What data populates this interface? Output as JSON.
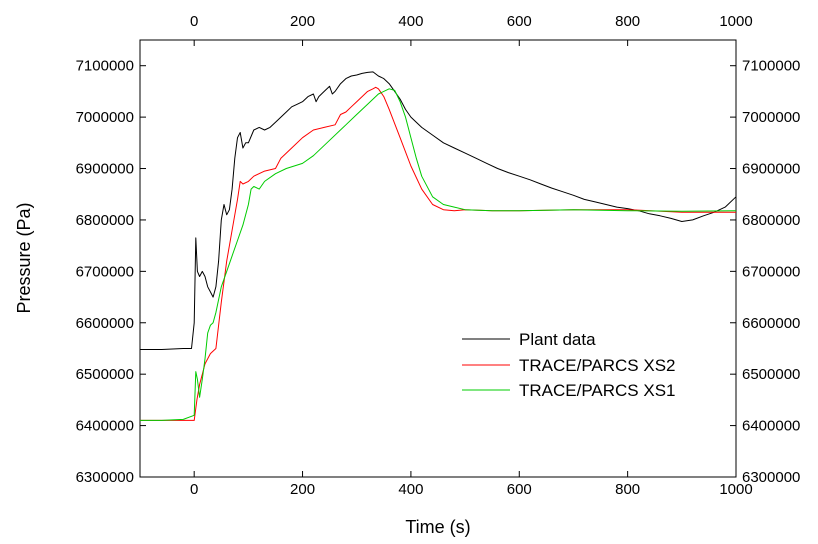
{
  "chart_data": {
    "type": "line",
    "xlabel": "Time (s)",
    "ylabel": "Pressure (Pa)",
    "xlim": [
      -100,
      1000
    ],
    "ylim": [
      6300000,
      7150000
    ],
    "xticks": [
      0,
      200,
      400,
      600,
      800,
      1000
    ],
    "yticks": [
      6300000,
      6400000,
      6500000,
      6600000,
      6700000,
      6800000,
      6900000,
      7000000,
      7100000
    ],
    "xtick_labels": [
      "0",
      "200",
      "400",
      "600",
      "800",
      "1000"
    ],
    "ytick_labels": [
      "6300000",
      "6400000",
      "6500000",
      "6600000",
      "6700000",
      "6800000",
      "6900000",
      "7000000",
      "7100000"
    ],
    "top_axis_mirrored": true,
    "right_axis_mirrored": true,
    "grid": false,
    "legend_position": "lower-right",
    "series": [
      {
        "name": "Plant data",
        "color": "#000000",
        "x": [
          -100,
          -60,
          -20,
          -5,
          0,
          3,
          6,
          10,
          15,
          20,
          25,
          30,
          35,
          40,
          45,
          50,
          55,
          60,
          65,
          70,
          75,
          80,
          85,
          90,
          95,
          100,
          110,
          120,
          130,
          140,
          150,
          160,
          170,
          180,
          190,
          200,
          210,
          220,
          225,
          230,
          240,
          250,
          255,
          260,
          270,
          280,
          290,
          300,
          310,
          320,
          330,
          340,
          350,
          360,
          370,
          380,
          390,
          400,
          420,
          440,
          460,
          480,
          500,
          520,
          540,
          560,
          580,
          600,
          620,
          640,
          660,
          680,
          700,
          720,
          740,
          760,
          780,
          800,
          820,
          840,
          860,
          880,
          900,
          920,
          940,
          960,
          980,
          1000
        ],
        "y": [
          6548000,
          6548000,
          6550000,
          6550000,
          6600000,
          6765000,
          6700000,
          6690000,
          6700000,
          6690000,
          6670000,
          6660000,
          6650000,
          6670000,
          6720000,
          6800000,
          6830000,
          6810000,
          6820000,
          6860000,
          6920000,
          6960000,
          6970000,
          6940000,
          6950000,
          6950000,
          6975000,
          6980000,
          6975000,
          6980000,
          6990000,
          7000000,
          7010000,
          7020000,
          7025000,
          7030000,
          7040000,
          7045000,
          7030000,
          7040000,
          7050000,
          7060000,
          7045000,
          7050000,
          7065000,
          7075000,
          7080000,
          7082000,
          7085000,
          7087000,
          7088000,
          7080000,
          7075000,
          7065000,
          7050000,
          7035000,
          7015000,
          7000000,
          6980000,
          6965000,
          6950000,
          6940000,
          6930000,
          6920000,
          6910000,
          6900000,
          6892000,
          6885000,
          6878000,
          6870000,
          6862000,
          6855000,
          6848000,
          6840000,
          6835000,
          6830000,
          6825000,
          6822000,
          6818000,
          6812000,
          6808000,
          6803000,
          6797000,
          6800000,
          6808000,
          6815000,
          6825000,
          6845000
        ]
      },
      {
        "name": "TRACE/PARCS XS2",
        "color": "#ff0000",
        "x": [
          -100,
          -60,
          -20,
          0,
          5,
          10,
          15,
          20,
          30,
          40,
          50,
          60,
          70,
          80,
          85,
          90,
          100,
          110,
          130,
          150,
          160,
          170,
          180,
          200,
          220,
          240,
          260,
          270,
          280,
          290,
          300,
          310,
          320,
          330,
          335,
          340,
          350,
          360,
          380,
          400,
          420,
          440,
          460,
          480,
          500,
          550,
          600,
          700,
          800,
          900,
          1000
        ],
        "y": [
          6410000,
          6410000,
          6410000,
          6410000,
          6450000,
          6480000,
          6500000,
          6520000,
          6540000,
          6550000,
          6640000,
          6720000,
          6780000,
          6840000,
          6875000,
          6870000,
          6875000,
          6885000,
          6895000,
          6900000,
          6920000,
          6930000,
          6940000,
          6960000,
          6975000,
          6980000,
          6985000,
          7005000,
          7010000,
          7020000,
          7030000,
          7040000,
          7050000,
          7055000,
          7058000,
          7055000,
          7040000,
          7015000,
          6960000,
          6905000,
          6860000,
          6830000,
          6820000,
          6818000,
          6820000,
          6818000,
          6818000,
          6820000,
          6820000,
          6815000,
          6815000
        ]
      },
      {
        "name": "TRACE/PARCS XS1",
        "color": "#00cc00",
        "x": [
          -100,
          -60,
          -20,
          0,
          3,
          6,
          10,
          15,
          20,
          25,
          30,
          35,
          40,
          50,
          60,
          70,
          80,
          90,
          100,
          105,
          110,
          120,
          130,
          150,
          170,
          200,
          220,
          250,
          280,
          300,
          320,
          340,
          360,
          370,
          380,
          390,
          400,
          410,
          420,
          440,
          460,
          480,
          500,
          550,
          600,
          700,
          800,
          900,
          1000
        ],
        "y": [
          6410000,
          6410000,
          6412000,
          6420000,
          6505000,
          6490000,
          6455000,
          6490000,
          6530000,
          6580000,
          6595000,
          6600000,
          6620000,
          6670000,
          6700000,
          6730000,
          6760000,
          6790000,
          6830000,
          6860000,
          6865000,
          6860000,
          6875000,
          6890000,
          6900000,
          6910000,
          6925000,
          6955000,
          6985000,
          7005000,
          7025000,
          7045000,
          7055000,
          7052000,
          7030000,
          7000000,
          6960000,
          6920000,
          6885000,
          6845000,
          6830000,
          6825000,
          6820000,
          6818000,
          6818000,
          6820000,
          6818000,
          6817000,
          6818000
        ]
      }
    ]
  }
}
